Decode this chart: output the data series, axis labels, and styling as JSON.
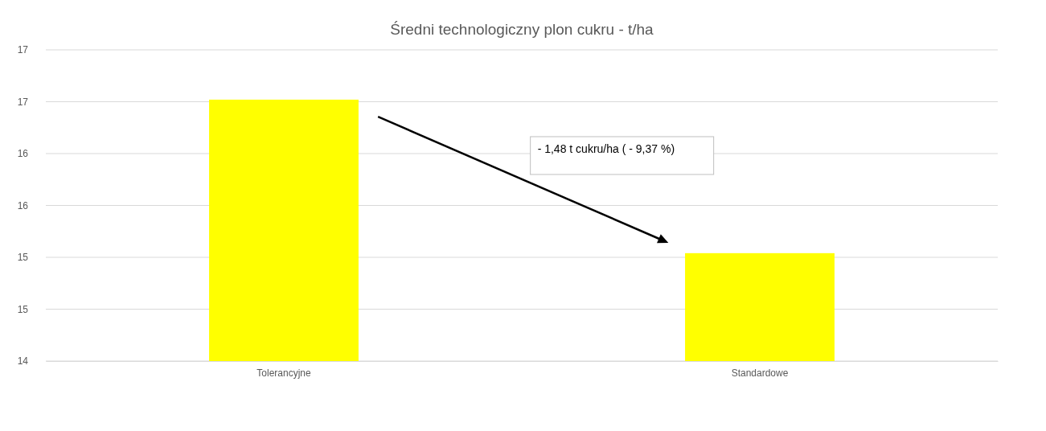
{
  "chart_data": {
    "type": "bar",
    "title": "Średni technologiczny plon cukru - t/ha",
    "categories": [
      "Tolerancyjne",
      "Standardowe"
    ],
    "values": [
      16.52,
      15.04
    ],
    "color": "#ffff00",
    "ylim": [
      14,
      17
    ],
    "yticks": [
      14,
      {
        "value": 14.5,
        "label": "15"
      },
      15,
      {
        "value": 15.5,
        "label": "16"
      },
      16,
      {
        "value": 16.5,
        "label": "17"
      },
      17
    ],
    "grid": "y",
    "annotations": [
      "- 1,48 t cukru/ha ( - 9,37 %)"
    ]
  }
}
